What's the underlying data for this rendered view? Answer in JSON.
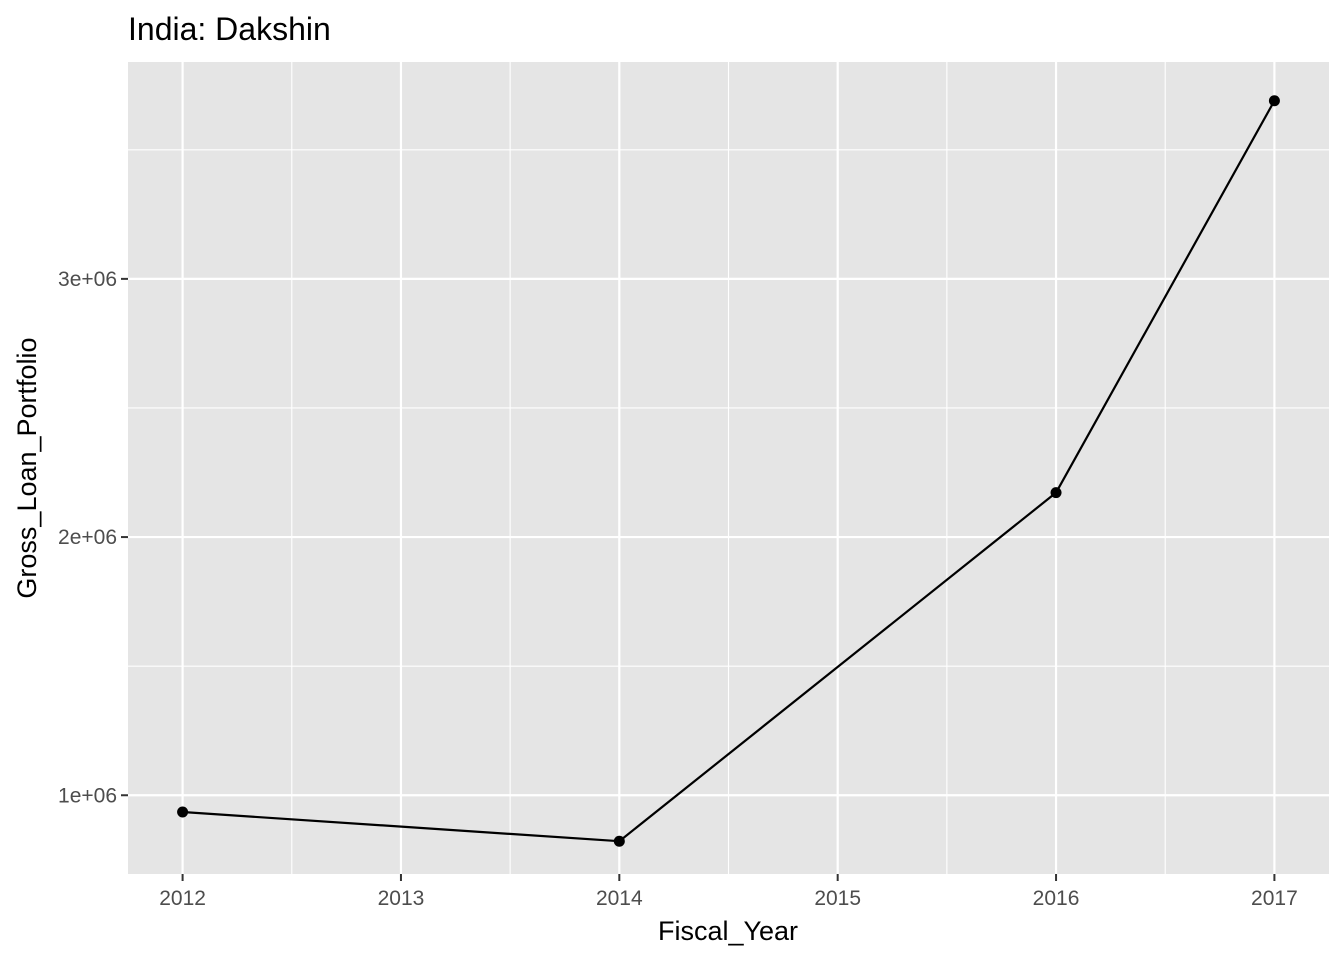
{
  "chart_data": {
    "type": "line",
    "title": "India:  Dakshin",
    "xlabel": "Fiscal_Year",
    "ylabel": "Gross_Loan_Portfolio",
    "x": [
      2012,
      2014,
      2016,
      2017
    ],
    "series": [
      {
        "values": [
          935000,
          822000,
          2172000,
          3690000
        ]
      }
    ],
    "x_ticks": [
      2012,
      2013,
      2014,
      2015,
      2016,
      2017
    ],
    "x_tick_labels": [
      "2012",
      "2013",
      "2014",
      "2015",
      "2016",
      "2017"
    ],
    "y_ticks": [
      1000000,
      2000000,
      3000000
    ],
    "y_tick_labels": [
      "1e+06",
      "2e+06",
      "3e+06"
    ],
    "xlim": [
      2011.75,
      2017.25
    ],
    "ylim": [
      695000,
      3840000
    ],
    "grid": true,
    "colors": {
      "panel_background": "#e5e5e5",
      "grid": "#ffffff",
      "line": "#000000",
      "point": "#000000",
      "tick": "#333333"
    }
  }
}
